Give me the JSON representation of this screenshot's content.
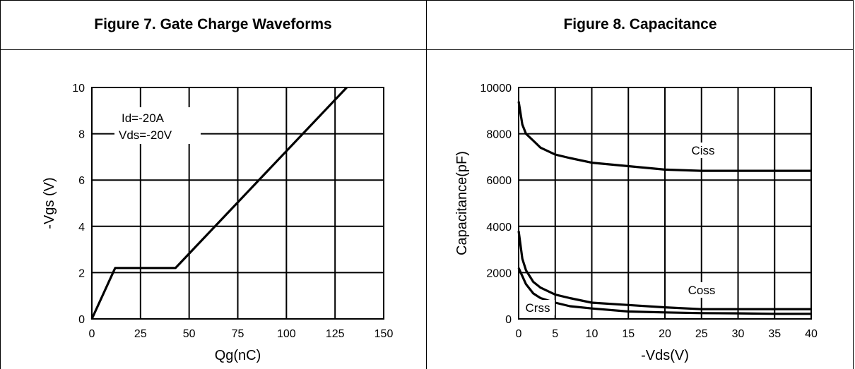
{
  "chart_data": [
    {
      "type": "line",
      "title": "Figure 7. Gate Charge Waveforms",
      "xlabel": "Qg(nC)",
      "ylabel": "-Vgs (V)",
      "xlim": [
        0,
        150
      ],
      "ylim": [
        0,
        10
      ],
      "xticks": [
        0,
        25,
        50,
        75,
        100,
        125,
        150
      ],
      "yticks": [
        0,
        2,
        4,
        6,
        8,
        10
      ],
      "grid": true,
      "annotations": [
        "Id=-20A",
        "Vds=-20V"
      ],
      "series": [
        {
          "x": [
            0,
            12,
            43,
            131
          ],
          "y": [
            0,
            2.2,
            2.2,
            10
          ]
        }
      ]
    },
    {
      "type": "line",
      "title": "Figure 8. Capacitance",
      "xlabel": "-Vds(V)",
      "ylabel": "Capacitance(pF)",
      "xlim": [
        0,
        40
      ],
      "ylim": [
        0,
        10000
      ],
      "xticks": [
        0,
        5,
        10,
        15,
        20,
        25,
        30,
        35,
        40
      ],
      "yticks": [
        0,
        2000,
        4000,
        6000,
        8000,
        10000
      ],
      "grid": true,
      "series": [
        {
          "name": "Ciss",
          "x": [
            0,
            0.5,
            1,
            2,
            3,
            5,
            7,
            10,
            15,
            20,
            25,
            30,
            35,
            40
          ],
          "y": [
            9400,
            8400,
            8000,
            7700,
            7400,
            7100,
            6950,
            6750,
            6600,
            6450,
            6400,
            6400,
            6400,
            6400
          ]
        },
        {
          "name": "Coss",
          "x": [
            0,
            0.5,
            1,
            2,
            3,
            5,
            7,
            10,
            15,
            20,
            25,
            30,
            35,
            40
          ],
          "y": [
            3800,
            2600,
            2100,
            1600,
            1350,
            1050,
            900,
            700,
            600,
            500,
            420,
            420,
            420,
            420
          ]
        },
        {
          "name": "Crss",
          "x": [
            0,
            0.5,
            1,
            2,
            3,
            5,
            7,
            10,
            15,
            20,
            25,
            30,
            35,
            40
          ],
          "y": [
            2200,
            1850,
            1500,
            1100,
            900,
            700,
            550,
            450,
            320,
            280,
            250,
            240,
            220,
            220
          ]
        }
      ]
    }
  ]
}
